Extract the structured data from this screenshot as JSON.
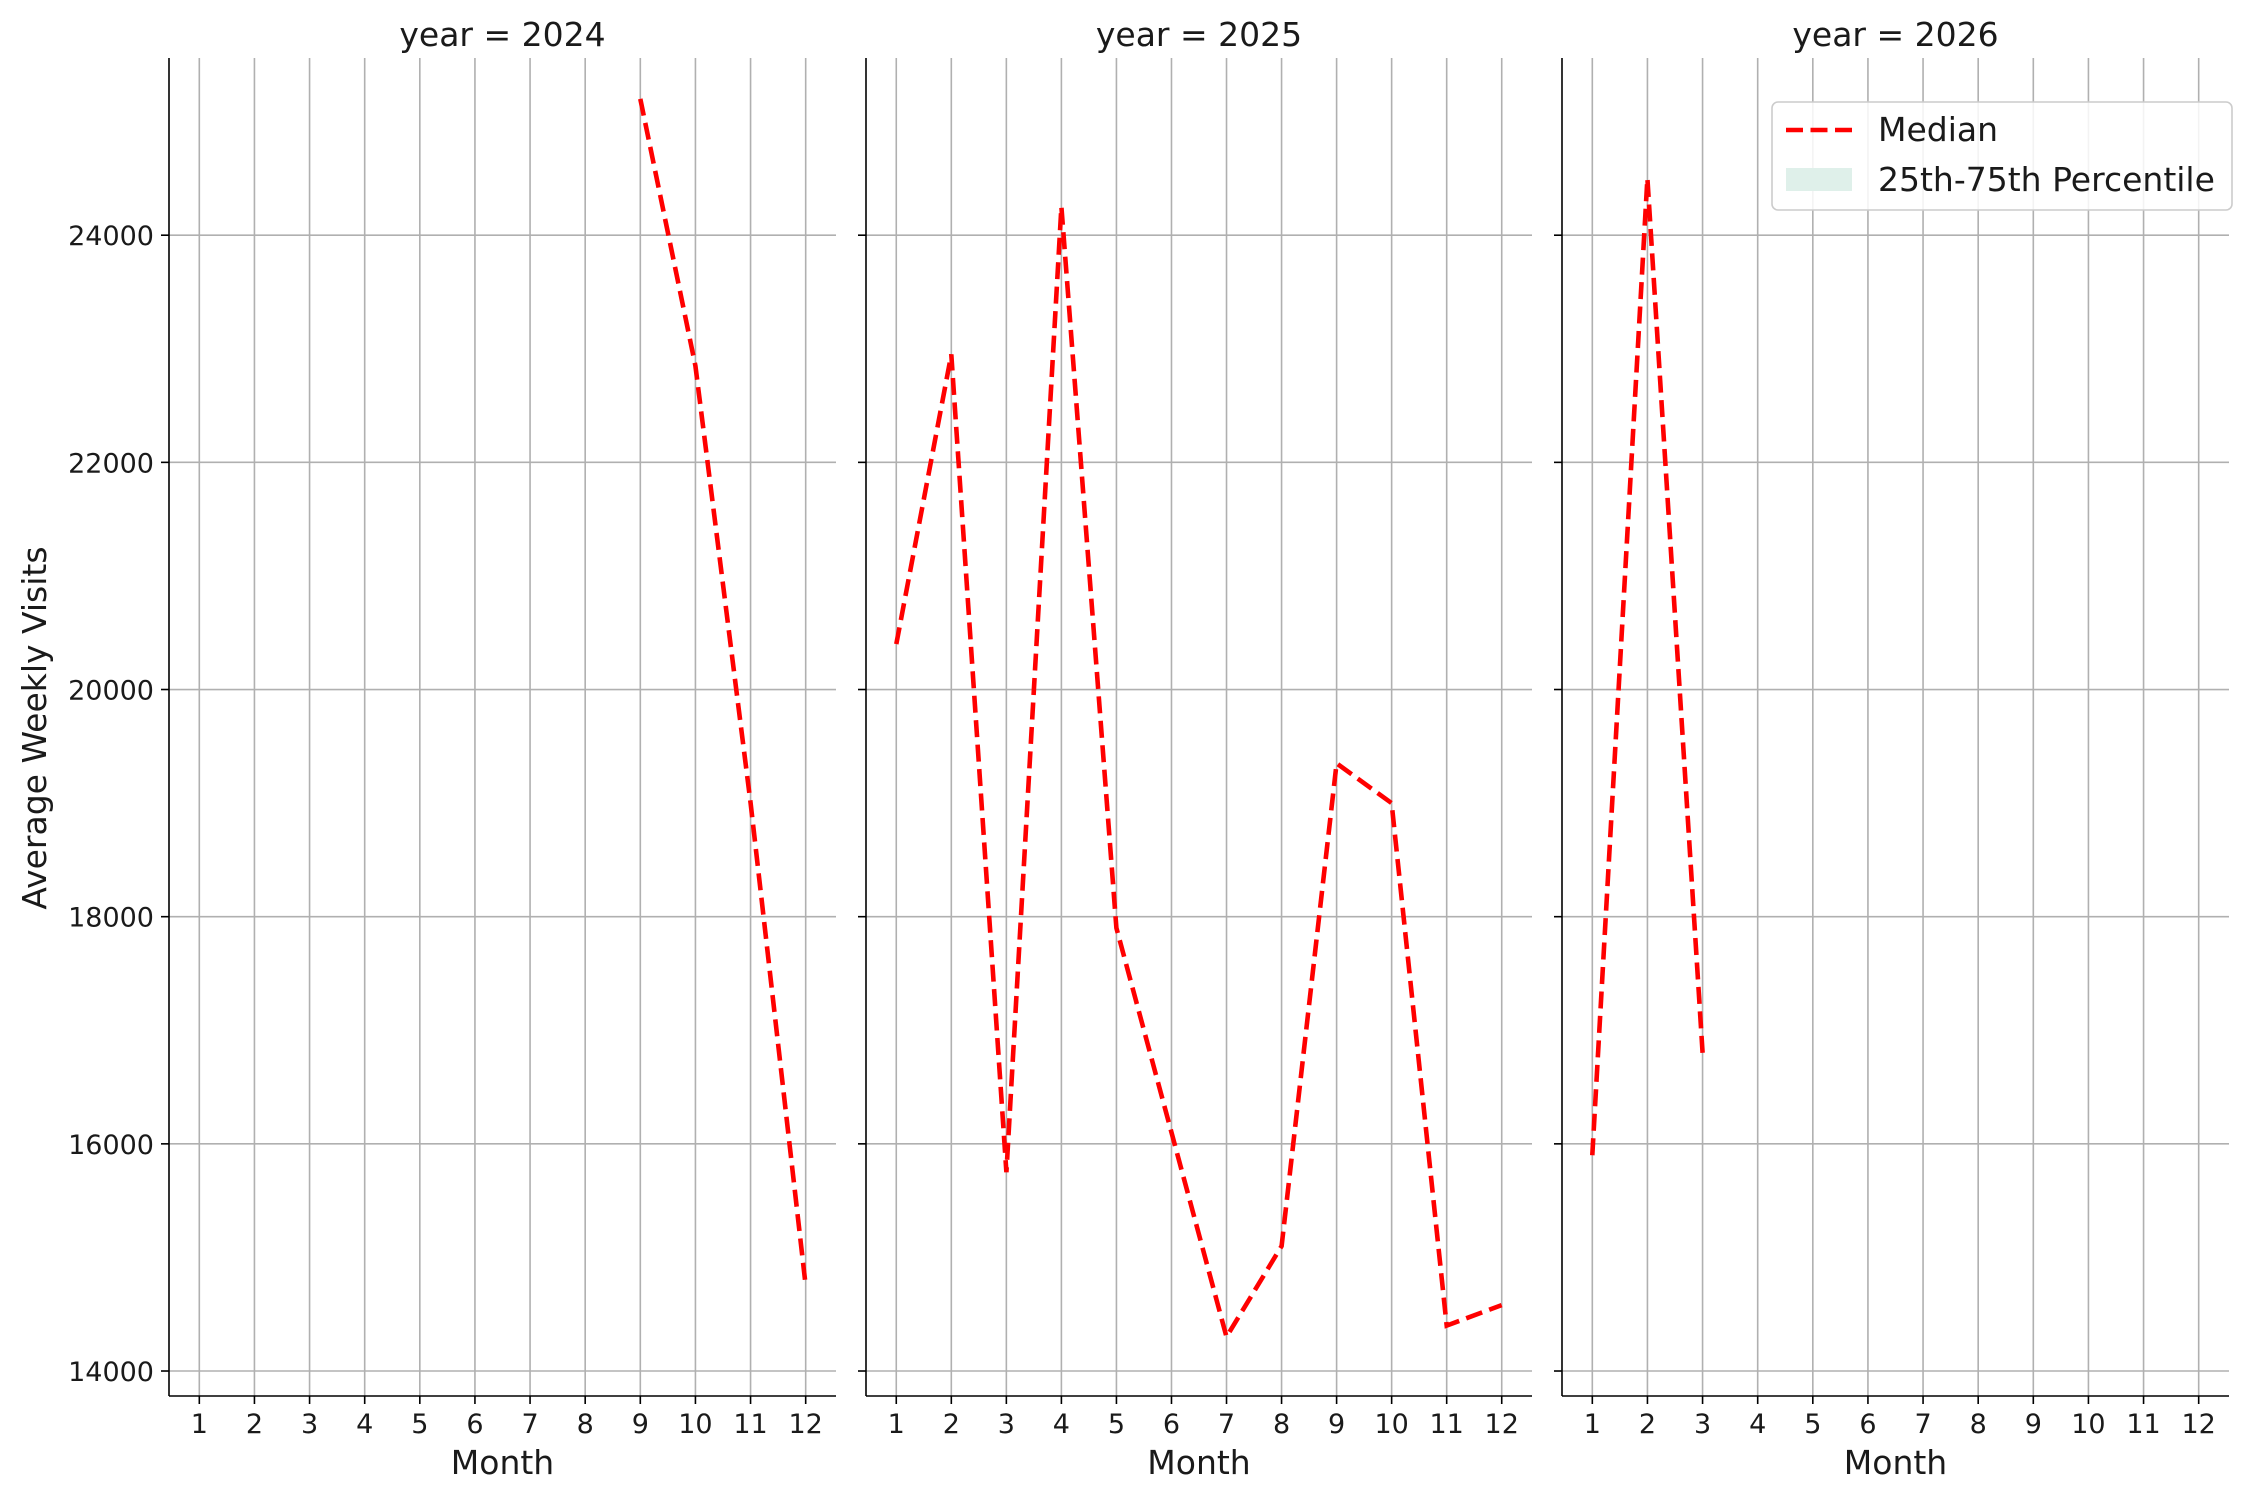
{
  "chart_data": {
    "type": "line",
    "layout": "facet-grid",
    "ylabel": "Average Weekly Visits",
    "xlabel": "Month",
    "x_ticks": [
      1,
      2,
      3,
      4,
      5,
      6,
      7,
      8,
      9,
      10,
      11,
      12
    ],
    "y_ticks": [
      14000,
      16000,
      18000,
      20000,
      22000,
      24000
    ],
    "ylim": [
      13780,
      25560
    ],
    "xlim": [
      0.45,
      12.55
    ],
    "shared_y": true,
    "grid": true,
    "legend": {
      "placement": "top-right of last panel",
      "entries": [
        {
          "label": "Median",
          "style": "dashed line",
          "color": "#ff0000"
        },
        {
          "label": "25th-75th Percentile",
          "style": "filled band",
          "color": "#dff0ea"
        }
      ]
    },
    "colors": {
      "median": "#ff0000",
      "band": "#dff0ea",
      "grid": "#b0b0b0"
    },
    "panels": [
      {
        "title": "year = 2024",
        "series": [
          {
            "name": "Median",
            "x": [
              9,
              10,
              11,
              12
            ],
            "y": [
              25200,
              22850,
              19000,
              14750
            ]
          }
        ]
      },
      {
        "title": "year = 2025",
        "series": [
          {
            "name": "Median",
            "x": [
              1,
              2,
              3,
              4,
              5,
              6,
              7,
              8,
              9,
              10,
              11,
              12
            ],
            "y": [
              20400,
              22950,
              15750,
              24250,
              17900,
              16100,
              14300,
              15100,
              19350,
              19000,
              14400,
              14580
            ]
          }
        ]
      },
      {
        "title": "year = 2026",
        "series": [
          {
            "name": "Median",
            "x": [
              1,
              2,
              3
            ],
            "y": [
              15900,
              24500,
              16800
            ]
          }
        ]
      }
    ]
  }
}
